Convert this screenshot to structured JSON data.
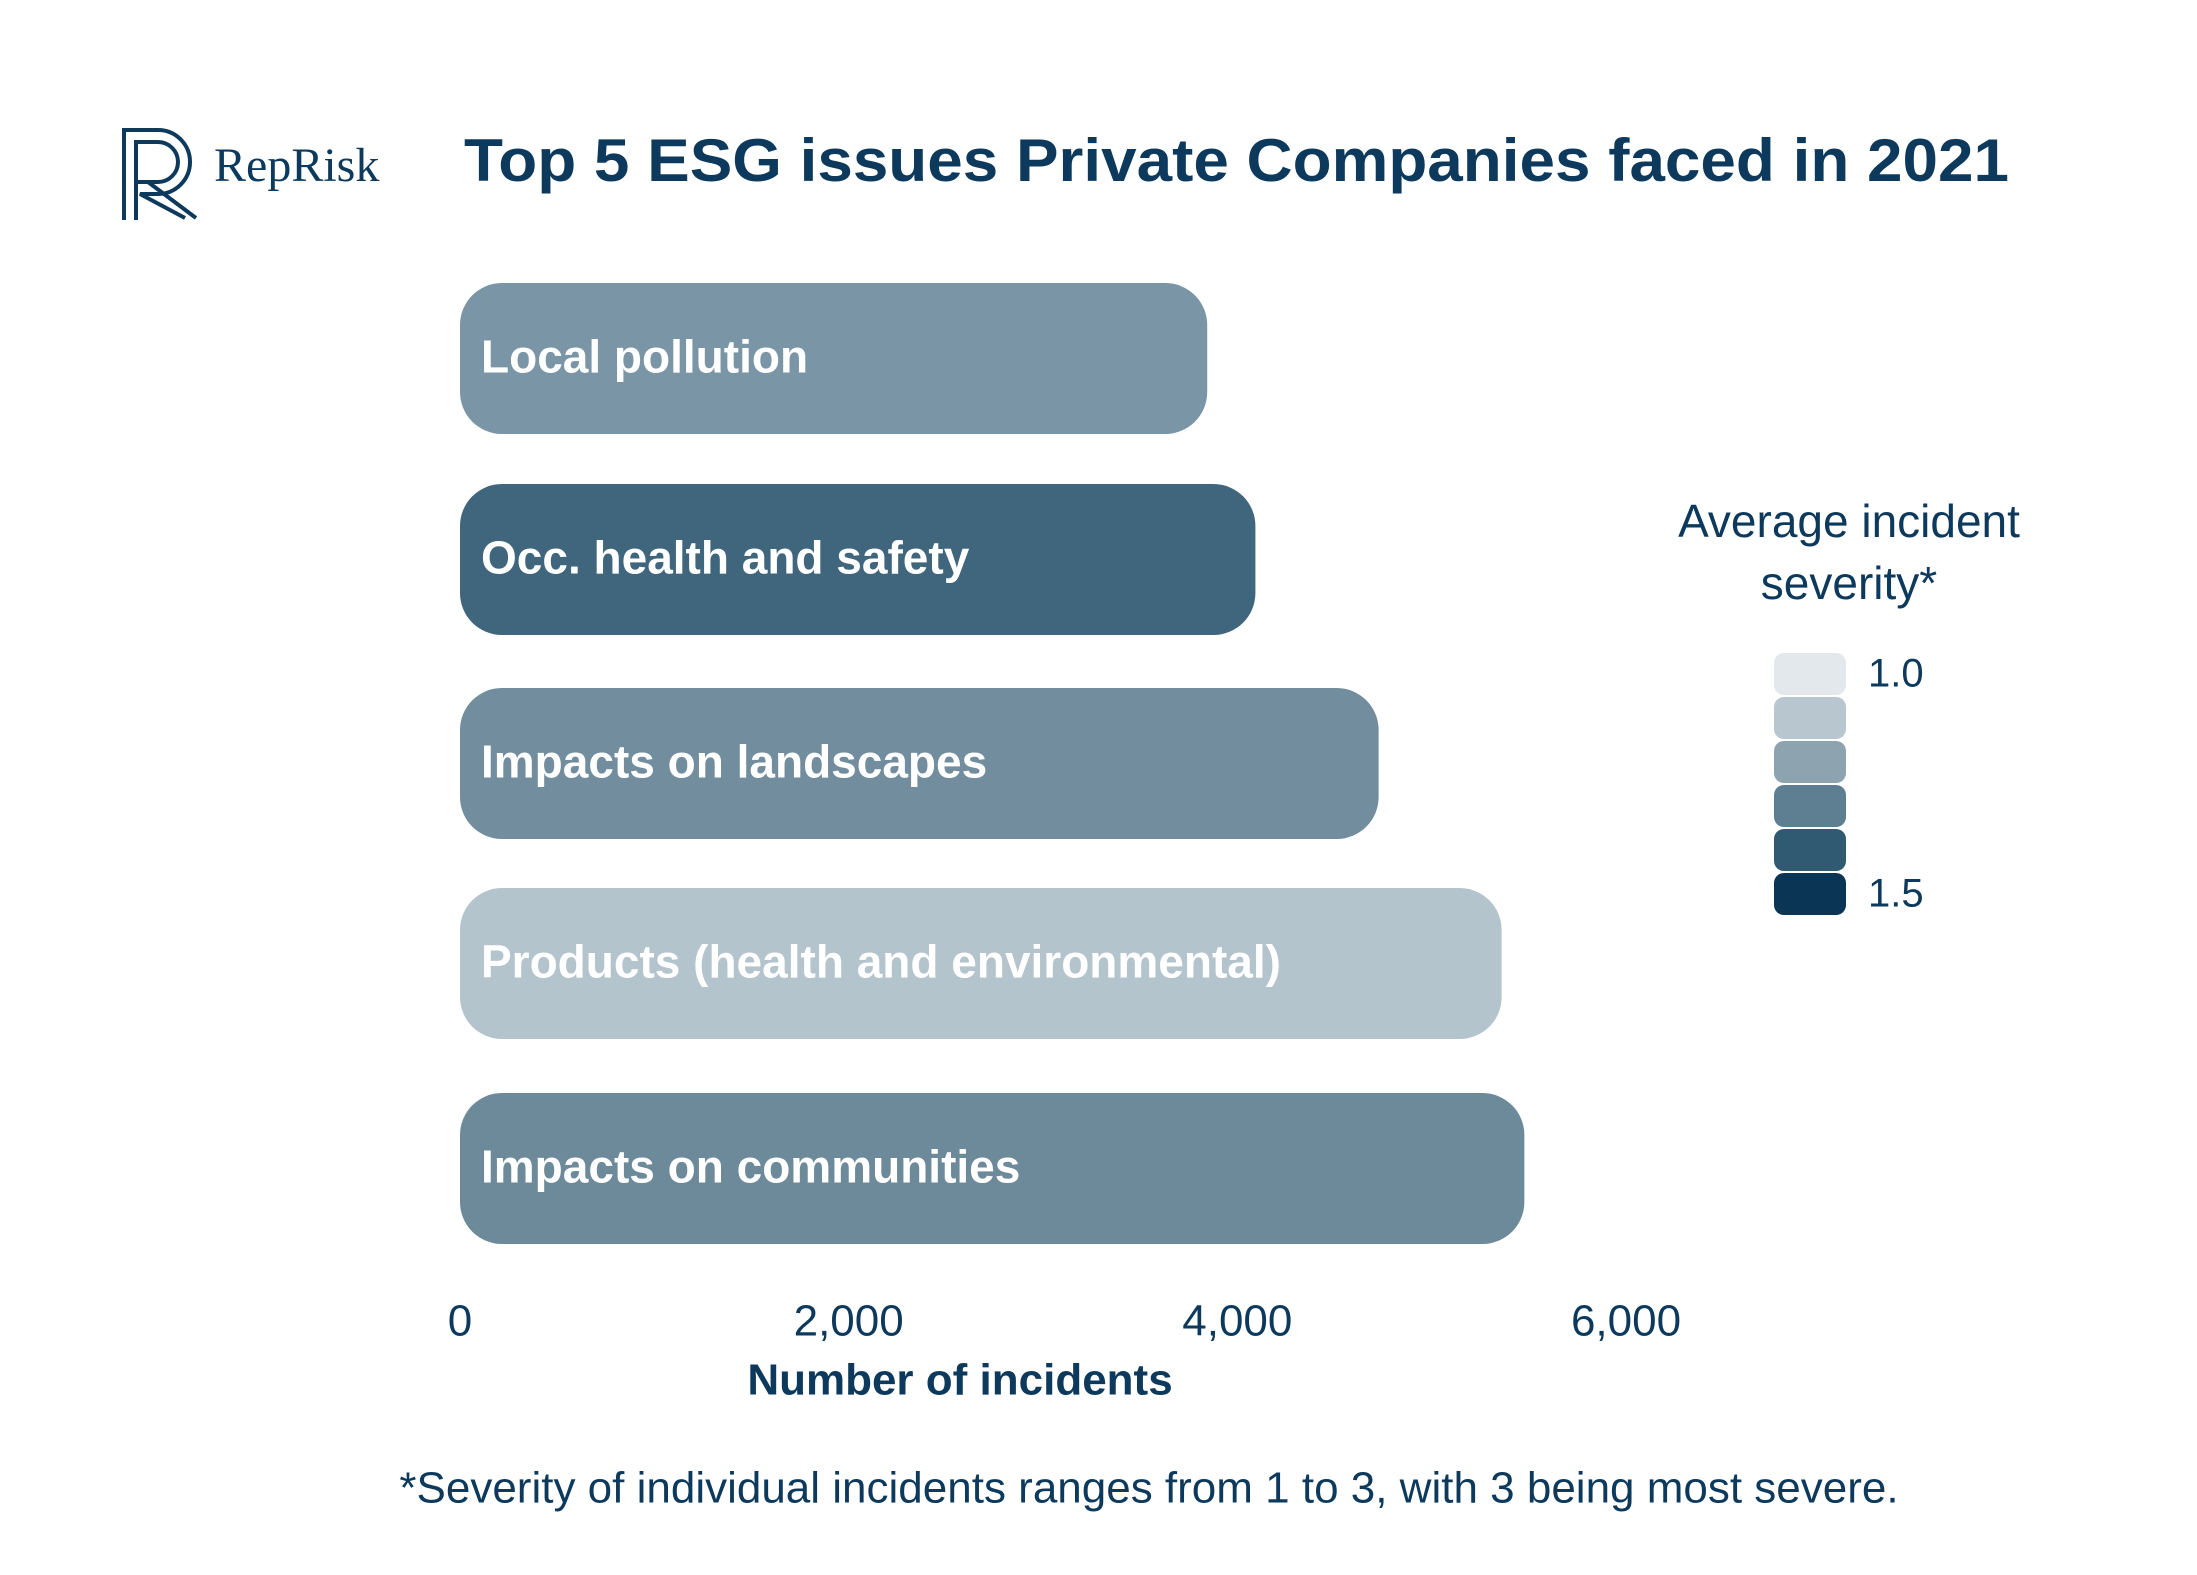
{
  "chart_data": {
    "type": "bar",
    "orientation": "horizontal",
    "logo": "RepRisk",
    "title": "Top 5 ESG issues Private Companies faced in 2021",
    "categories": [
      "Local pollution",
      "Occ. health and safety",
      "Impacts on landscapes",
      "Products (health and environmental)",
      "Impacts on communities"
    ],
    "values": [
      3845,
      4093,
      4727,
      5360,
      5477
    ],
    "colors": [
      "#7a95a5",
      "#3f667c",
      "#728d9d",
      "#b4c4cd",
      "#6d8a9b"
    ],
    "xlim": [
      0,
      6000
    ],
    "xticks": [
      0,
      {
        "value": 2000,
        "label": "2,000"
      },
      {
        "value": 4000,
        "label": "4,000"
      },
      {
        "value": 6000,
        "label": "6,000"
      }
    ],
    "xlabel": "Number of incidents",
    "legend": {
      "title": "Average incident severity*",
      "colors": [
        "#e2e8ec",
        "#b7c6cf",
        "#8ea3b0",
        "#5e7f91",
        "#2f5a72",
        "#0b3554"
      ],
      "labels": [
        {
          "value": 1.0,
          "label": "1.0"
        },
        1.5
      ]
    },
    "footnote": "*Severity of individual incidents ranges from 1 to 3, with 3 being most severe."
  }
}
